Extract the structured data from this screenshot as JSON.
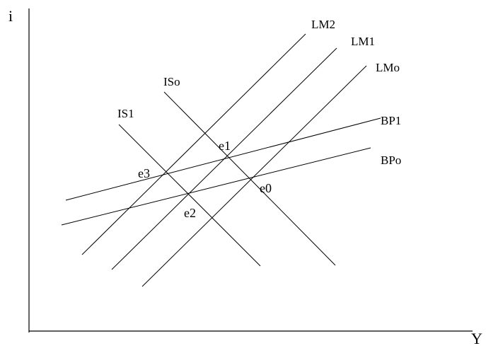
{
  "axes": {
    "y_label": "i",
    "x_label": "Y"
  },
  "curves": [
    {
      "id": "lm2",
      "label": "LM2"
    },
    {
      "id": "lm1",
      "label": "LM1"
    },
    {
      "id": "lmo",
      "label": "LMo"
    },
    {
      "id": "iso",
      "label": "ISo"
    },
    {
      "id": "is1",
      "label": "IS1"
    },
    {
      "id": "bp1",
      "label": "BP1"
    },
    {
      "id": "bpo",
      "label": "BPo"
    }
  ],
  "points": [
    {
      "id": "e0",
      "label": "e0"
    },
    {
      "id": "e1",
      "label": "e1"
    },
    {
      "id": "e2",
      "label": "e2"
    },
    {
      "id": "e3",
      "label": "e3"
    }
  ]
}
